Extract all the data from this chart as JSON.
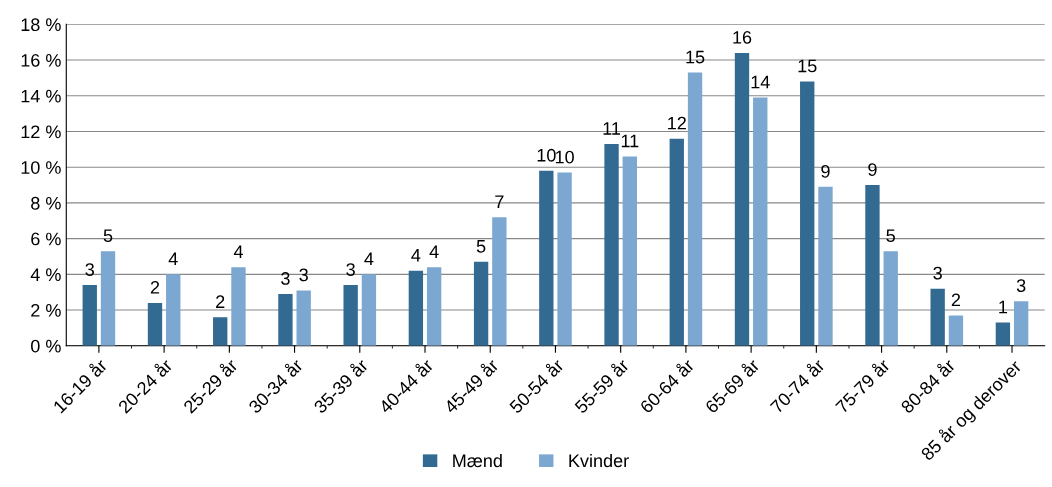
{
  "chart_data": {
    "type": "bar",
    "categories": [
      "16-19 år",
      "20-24 år",
      "25-29 år",
      "30-34 år",
      "35-39 år",
      "40-44 år",
      "45-49 år",
      "50-54 år",
      "55-59 år",
      "60-64 år",
      "65-69 år",
      "70-74 år",
      "75-79 år",
      "80-84 år",
      "85 år og derover"
    ],
    "series": [
      {
        "name": "Mænd",
        "color": "#336a92",
        "values": [
          3.4,
          2.4,
          1.6,
          2.9,
          3.4,
          4.2,
          4.7,
          9.8,
          11.3,
          11.6,
          16.4,
          14.8,
          9.0,
          3.2,
          1.3
        ],
        "value_labels": [
          "3",
          "2",
          "2",
          "3",
          "3",
          "4",
          "5",
          "10",
          "11",
          "12",
          "16",
          "15",
          "9",
          "3",
          "1"
        ]
      },
      {
        "name": "Kvinder",
        "color": "#7ba7d1",
        "values": [
          5.3,
          4.0,
          4.4,
          3.1,
          4.0,
          4.4,
          7.2,
          9.7,
          10.6,
          15.3,
          13.9,
          8.9,
          5.3,
          1.7,
          2.5
        ],
        "value_labels": [
          "5",
          "4",
          "4",
          "3",
          "4",
          "4",
          "7",
          "10",
          "11",
          "15",
          "14",
          "9",
          "5",
          "2",
          "3"
        ]
      }
    ],
    "ylim": [
      0,
      18
    ],
    "yticks": [
      {
        "value": 0,
        "label": "0 %"
      },
      {
        "value": 2,
        "label": "2 %"
      },
      {
        "value": 4,
        "label": "4 %"
      },
      {
        "value": 6,
        "label": "6 %"
      },
      {
        "value": 8,
        "label": "8 %"
      },
      {
        "value": 10,
        "label": "10 %"
      },
      {
        "value": 12,
        "label": "12 %"
      },
      {
        "value": 14,
        "label": "14 %"
      },
      {
        "value": 16,
        "label": "16 %"
      },
      {
        "value": 18,
        "label": "18 %"
      }
    ],
    "grid": "y",
    "legend": "bottom"
  }
}
